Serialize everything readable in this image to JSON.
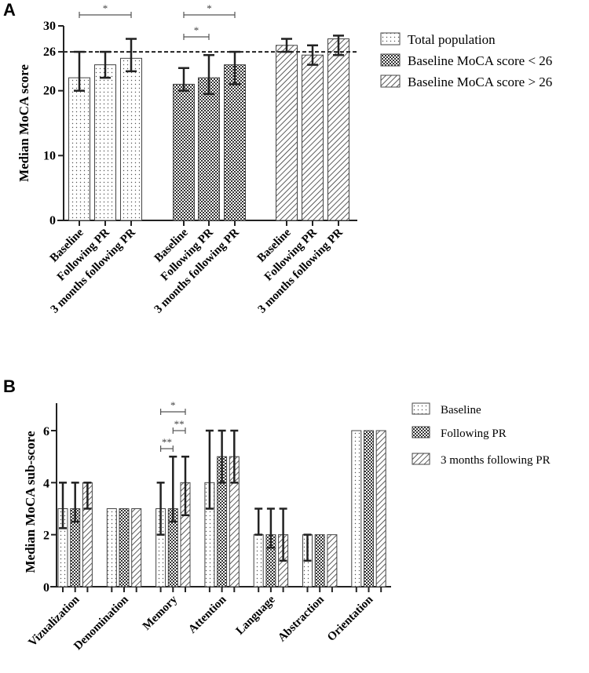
{
  "chart_data": [
    {
      "panel": "A",
      "type": "bar",
      "ylabel": "Median  MoCA score",
      "ylim": [
        0,
        30
      ],
      "yticks": [
        0,
        10,
        20,
        26,
        30
      ],
      "reference_line": 26,
      "categories": [
        "Baseline",
        "Following PR",
        "3 months following PR"
      ],
      "series": [
        {
          "name": "Total population",
          "pattern": "dots",
          "values": [
            22,
            24,
            25
          ],
          "err_low": [
            20,
            22,
            23
          ],
          "err_high": [
            26,
            26,
            28
          ]
        },
        {
          "name": "Baseline MoCA score < 26",
          "pattern": "checker",
          "values": [
            21,
            22,
            24
          ],
          "err_low": [
            20,
            19.5,
            21
          ],
          "err_high": [
            23.5,
            25.5,
            26
          ]
        },
        {
          "name": "Baseline MoCA score > 26",
          "pattern": "hatch",
          "values": [
            27,
            25.5,
            28
          ],
          "err_low": [
            26,
            24,
            25.5
          ],
          "err_high": [
            28,
            27,
            28.5
          ]
        }
      ],
      "significance": [
        {
          "series": 0,
          "from": 0,
          "to": 2,
          "label": "*",
          "level": 0
        },
        {
          "series": 1,
          "from": 0,
          "to": 2,
          "label": "*",
          "level": 0
        },
        {
          "series": 1,
          "from": 0,
          "to": 1,
          "label": "*",
          "level": 1
        }
      ],
      "legend": "top-right"
    },
    {
      "panel": "B",
      "type": "bar",
      "ylabel": "Median MoCA sub-score",
      "ylim": [
        0,
        7
      ],
      "yticks": [
        0,
        2,
        4,
        6
      ],
      "categories": [
        "Vizualization",
        "Denomination",
        "Memory",
        "Attention",
        "Language",
        "Abstraction",
        "Orientation"
      ],
      "series": [
        {
          "name": "Baseline",
          "pattern": "dots",
          "values": [
            3,
            3,
            3,
            4,
            2,
            2,
            6
          ],
          "err_low": [
            2.25,
            3,
            2,
            3,
            2,
            1,
            6
          ],
          "err_high": [
            4,
            3,
            4,
            6,
            3,
            2,
            6
          ]
        },
        {
          "name": "Following PR",
          "pattern": "checker",
          "values": [
            3,
            3,
            3,
            5,
            2,
            2,
            6
          ],
          "err_low": [
            2.5,
            3,
            2.5,
            4,
            1.5,
            2,
            6
          ],
          "err_high": [
            4,
            3,
            5,
            6,
            3,
            2,
            6
          ]
        },
        {
          "name": "3 months following PR",
          "pattern": "hatch",
          "values": [
            4,
            3,
            4,
            5,
            2,
            2,
            6
          ],
          "err_low": [
            3,
            3,
            2.75,
            4,
            1,
            2,
            6
          ],
          "err_high": [
            4,
            3,
            5,
            6,
            3,
            2,
            6
          ]
        }
      ],
      "significance": [
        {
          "category": 2,
          "from": 0,
          "to": 2,
          "label": "*",
          "level": 2
        },
        {
          "category": 2,
          "from": 1,
          "to": 2,
          "label": "**",
          "level": 1
        },
        {
          "category": 2,
          "from": 0,
          "to": 1,
          "label": "**",
          "level": 0
        }
      ],
      "legend": "right"
    }
  ],
  "panels": {
    "a_label": "A",
    "b_label": "B"
  }
}
